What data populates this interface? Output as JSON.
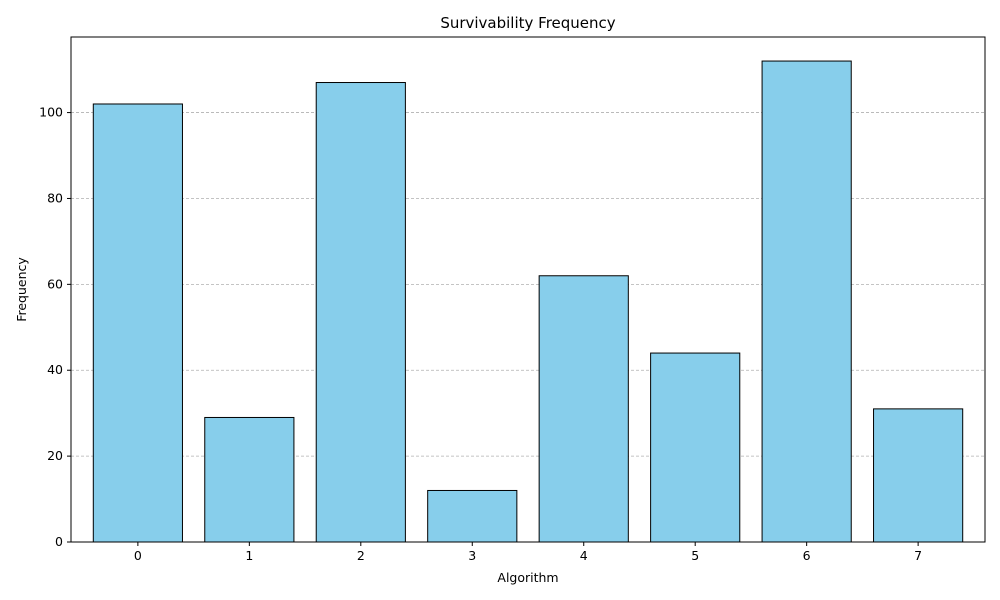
{
  "chart_data": {
    "type": "bar",
    "title": "Survivability Frequency",
    "xlabel": "Algorithm",
    "ylabel": "Frequency",
    "categories": [
      "0",
      "1",
      "2",
      "3",
      "4",
      "5",
      "6",
      "7"
    ],
    "values": [
      102,
      29,
      107,
      12,
      62,
      44,
      112,
      31
    ],
    "ylim": [
      0,
      117.6
    ],
    "yticks": [
      0,
      20,
      40,
      60,
      80,
      100
    ],
    "grid": "y-dashed",
    "bar_color": "#87CEEB",
    "edge_color": "#000000",
    "grid_color": "#b0b0b0"
  }
}
